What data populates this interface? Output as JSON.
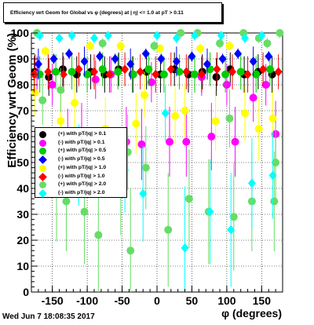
{
  "title": "Efficiency wrt Geom for Global vs φ (degrees) at | η| <= 1.0 at pT > 0.11",
  "timestamp": "Wed Jun  7 18:08:35 2017",
  "chart_data": {
    "type": "scatter",
    "xlabel": "φ (degrees)",
    "ylabel": "Efficiency wrt Geom (%)",
    "xlim": [
      -180,
      180
    ],
    "ylim": [
      0,
      100
    ],
    "x_ticks": [
      -150,
      -100,
      -50,
      0,
      50,
      100,
      150
    ],
    "y_ticks": [
      0,
      10,
      20,
      30,
      40,
      50,
      60,
      70,
      80,
      90,
      100
    ],
    "grid": true,
    "legend_position": "left-center",
    "series": [
      {
        "name": "(+) with pT/|q| > 0.1",
        "color": "#000000",
        "marker": "circle",
        "points": [
          [
            -175,
            85
          ],
          [
            -155,
            83
          ],
          [
            -135,
            86
          ],
          [
            -115,
            84
          ],
          [
            -95,
            85
          ],
          [
            -75,
            84
          ],
          [
            -55,
            86
          ],
          [
            -35,
            84
          ],
          [
            -15,
            85
          ],
          [
            5,
            84
          ],
          [
            25,
            86
          ],
          [
            45,
            84
          ],
          [
            65,
            85
          ],
          [
            85,
            83
          ],
          [
            105,
            86
          ],
          [
            125,
            84
          ],
          [
            145,
            85
          ],
          [
            165,
            84
          ]
        ]
      },
      {
        "name": "(-) with pT/|q| > 0.1",
        "color": "#ff00ff",
        "marker": "circle",
        "points": [
          [
            -172,
            84
          ],
          [
            -150,
            80
          ],
          [
            -128,
            57
          ],
          [
            -108,
            60
          ],
          [
            -88,
            82
          ],
          [
            -66,
            84
          ],
          [
            -44,
            58
          ],
          [
            -22,
            57
          ],
          [
            -8,
            81
          ],
          [
            18,
            58
          ],
          [
            42,
            58
          ],
          [
            64,
            83
          ],
          [
            78,
            60
          ],
          [
            100,
            80
          ],
          [
            112,
            58
          ],
          [
            138,
            75
          ],
          [
            156,
            80
          ],
          [
            170,
            61
          ]
        ]
      },
      {
        "name": "(+) with pT/|q| > 0.5",
        "color": "#00cc00",
        "marker": "circle",
        "points": [
          [
            -168,
            84
          ],
          [
            -145,
            85
          ],
          [
            -122,
            85
          ],
          [
            -100,
            84
          ],
          [
            -78,
            86
          ],
          [
            -56,
            85
          ],
          [
            -34,
            84
          ],
          [
            -12,
            86
          ],
          [
            10,
            84
          ],
          [
            32,
            85
          ],
          [
            54,
            84
          ],
          [
            76,
            86
          ],
          [
            98,
            84
          ],
          [
            120,
            85
          ],
          [
            142,
            84
          ],
          [
            162,
            86
          ]
        ]
      },
      {
        "name": "(-) with pT/|q| > 0.5",
        "color": "#0000ff",
        "marker": "diamond",
        "points": [
          [
            -170,
            88
          ],
          [
            -148,
            90
          ],
          [
            -126,
            92
          ],
          [
            -104,
            89
          ],
          [
            -82,
            91
          ],
          [
            -60,
            90
          ],
          [
            -38,
            88
          ],
          [
            -16,
            92
          ],
          [
            6,
            90
          ],
          [
            28,
            89
          ],
          [
            50,
            91
          ],
          [
            72,
            88
          ],
          [
            94,
            90
          ],
          [
            116,
            92
          ],
          [
            138,
            89
          ],
          [
            160,
            91
          ]
        ]
      },
      {
        "name": "(+) with pT/|q| > 1.0",
        "color": "#ffff00",
        "marker": "circle",
        "points": [
          [
            -175,
            77
          ],
          [
            -160,
            93
          ],
          [
            -138,
            66
          ],
          [
            -118,
            73
          ],
          [
            -96,
            95
          ],
          [
            -74,
            63
          ],
          [
            -52,
            95
          ],
          [
            -30,
            65
          ],
          [
            -18,
            76
          ],
          [
            4,
            94
          ],
          [
            26,
            68
          ],
          [
            40,
            70
          ],
          [
            62,
            94
          ],
          [
            84,
            66
          ],
          [
            104,
            95
          ],
          [
            126,
            69
          ],
          [
            146,
            63
          ],
          [
            166,
            67
          ]
        ]
      },
      {
        "name": "(-) with pT/|q| > 1.0",
        "color": "#ff0000",
        "marker": "diamond",
        "points": [
          [
            -176,
            84
          ],
          [
            -156,
            85
          ],
          [
            -134,
            84
          ],
          [
            -112,
            86
          ],
          [
            -90,
            85
          ],
          [
            -68,
            84
          ],
          [
            -46,
            86
          ],
          [
            -24,
            85
          ],
          [
            -2,
            84
          ],
          [
            20,
            86
          ],
          [
            42,
            85
          ],
          [
            64,
            84
          ],
          [
            86,
            86
          ],
          [
            108,
            85
          ],
          [
            130,
            84
          ],
          [
            152,
            86
          ],
          [
            174,
            85
          ]
        ]
      },
      {
        "name": "(+) with pT/|q| > 2.0",
        "color": "#66dd66",
        "marker": "circle",
        "points": [
          [
            -172,
            100
          ],
          [
            -164,
            74
          ],
          [
            -144,
            38
          ],
          [
            -138,
            78
          ],
          [
            -130,
            35
          ],
          [
            -104,
            31
          ],
          [
            -84,
            22
          ],
          [
            -78,
            96
          ],
          [
            -52,
            40
          ],
          [
            -42,
            54
          ],
          [
            -38,
            16
          ],
          [
            -16,
            48
          ],
          [
            -4,
            95
          ],
          [
            16,
            24
          ],
          [
            34,
            100
          ],
          [
            46,
            36
          ],
          [
            58,
            100
          ],
          [
            74,
            31
          ],
          [
            90,
            96
          ],
          [
            104,
            67
          ],
          [
            110,
            29
          ],
          [
            124,
            100
          ],
          [
            136,
            35
          ],
          [
            146,
            98
          ],
          [
            170,
            50
          ],
          [
            176,
            100
          ],
          [
            168,
            35
          ],
          [
            158,
            96
          ]
        ]
      },
      {
        "name": "(-) with pT/|q| > 2.0",
        "color": "#00ffff",
        "marker": "diamond",
        "points": [
          [
            -168,
            99
          ],
          [
            -140,
            98
          ],
          [
            -122,
            99
          ],
          [
            -112,
            49
          ],
          [
            -90,
            98
          ],
          [
            -70,
            99
          ],
          [
            -46,
            47
          ],
          [
            -20,
            38
          ],
          [
            0,
            99
          ],
          [
            12,
            69
          ],
          [
            28,
            98
          ],
          [
            40,
            17
          ],
          [
            54,
            99
          ],
          [
            76,
            31
          ],
          [
            92,
            99
          ],
          [
            106,
            24
          ],
          [
            126,
            98
          ],
          [
            136,
            42
          ],
          [
            150,
            99
          ],
          [
            166,
            45
          ]
        ]
      }
    ]
  },
  "legend_labels": [
    "(+) with pT/|q| > 0.1",
    "(-) with pT/|q| > 0.1",
    "(+) with pT/|q| > 0.5",
    "(-) with pT/|q| > 0.5",
    "(+) with pT/|q| > 1.0",
    "(-) with pT/|q| > 1.0",
    "(+) with pT/|q| > 2.0",
    "(-) with pT/|q| > 2.0"
  ]
}
